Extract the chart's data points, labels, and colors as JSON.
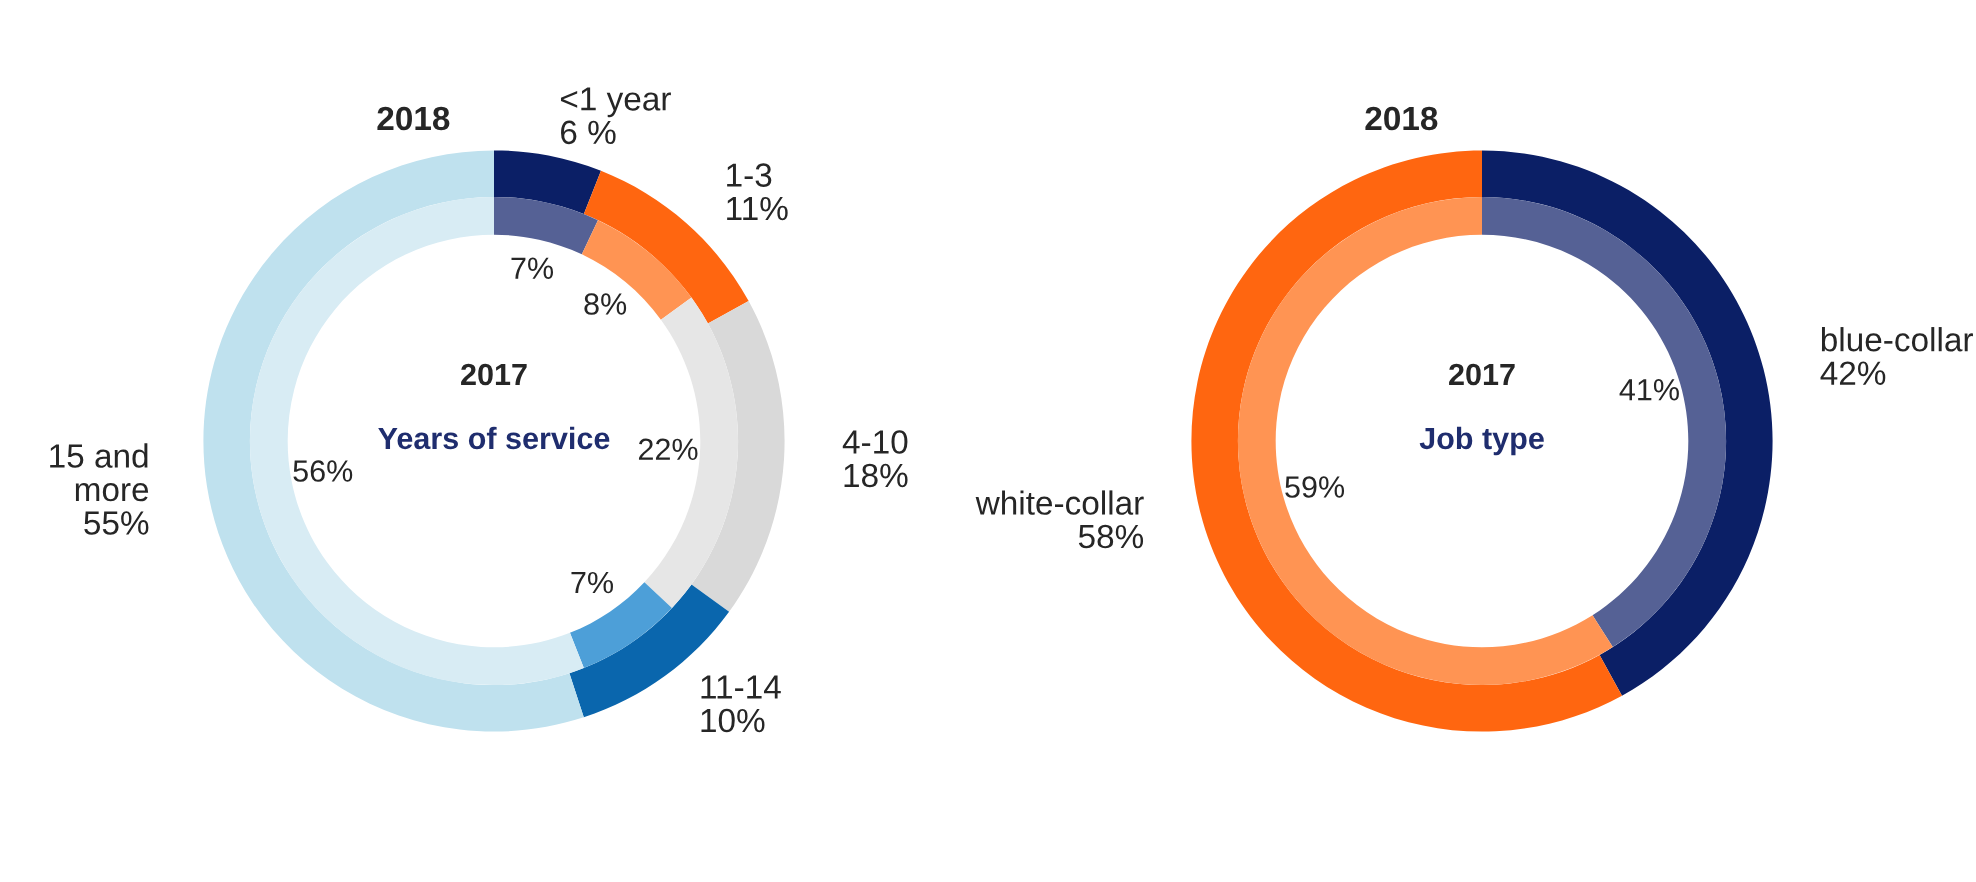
{
  "chart_data": [
    {
      "type": "donut",
      "title": "Years of service",
      "categories": [
        "<1 year",
        "1-3",
        "4-10",
        "11-14",
        "15 and more"
      ],
      "legend": false,
      "series": [
        {
          "name": "2018",
          "values": [
            6,
            11,
            18,
            10,
            55
          ],
          "value_labels": [
            "6 %",
            "11%",
            "18%",
            "10%",
            "55%"
          ],
          "colors": [
            "#0b1f66",
            "#ff6610",
            "#d9d9d9",
            "#0a66ad",
            "#bfe1ee"
          ]
        },
        {
          "name": "2017",
          "values": [
            7,
            8,
            22,
            7,
            56
          ],
          "value_labels": [
            "7%",
            "8%",
            "22%",
            "7%",
            "56%"
          ],
          "colors": [
            "#556195",
            "#ff9453",
            "#e6e6e6",
            "#4d9fd8",
            "#d8ecf4"
          ]
        }
      ]
    },
    {
      "type": "donut",
      "title": "Job type",
      "categories": [
        "blue-collar",
        "white-collar"
      ],
      "legend": false,
      "series": [
        {
          "name": "2018",
          "values": [
            42,
            58
          ],
          "value_labels": [
            "42%",
            "58%"
          ],
          "colors": [
            "#0b1f66",
            "#ff6610"
          ]
        },
        {
          "name": "2017",
          "values": [
            41,
            59
          ],
          "value_labels": [
            "41%",
            "59%"
          ],
          "colors": [
            "#556195",
            "#ff9453"
          ]
        }
      ]
    }
  ]
}
